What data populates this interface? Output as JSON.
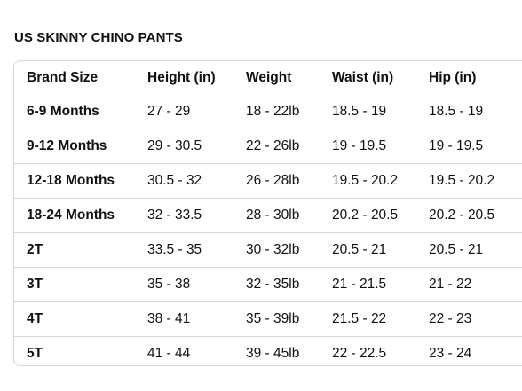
{
  "title": "US SKINNY CHINO PANTS",
  "table": {
    "headers": [
      "Brand Size",
      "Height (in)",
      "Weight",
      "Waist (in)",
      "Hip (in)"
    ],
    "rows": [
      [
        "6-9 Months",
        "27 - 29",
        "18 - 22lb",
        "18.5 - 19",
        "18.5 - 19"
      ],
      [
        "9-12 Months",
        "29 - 30.5",
        "22 - 26lb",
        "19 - 19.5",
        "19 - 19.5"
      ],
      [
        "12-18 Months",
        "30.5 - 32",
        "26 - 28lb",
        "19.5 - 20.2",
        "19.5 - 20.2"
      ],
      [
        "18-24 Months",
        "32 - 33.5",
        "28 - 30lb",
        "20.2 - 20.5",
        "20.2 - 20.5"
      ],
      [
        "2T",
        "33.5 - 35",
        "30 - 32lb",
        "20.5 - 21",
        "20.5 - 21"
      ],
      [
        "3T",
        "35 - 38",
        "32 - 35lb",
        "21 - 21.5",
        "21 - 22"
      ],
      [
        "4T",
        "38 - 41",
        "35 - 39lb",
        "21.5 - 22",
        "22 - 23"
      ],
      [
        "5T",
        "41 - 44",
        "39 - 45lb",
        "22 - 22.5",
        "23 - 24"
      ]
    ]
  }
}
